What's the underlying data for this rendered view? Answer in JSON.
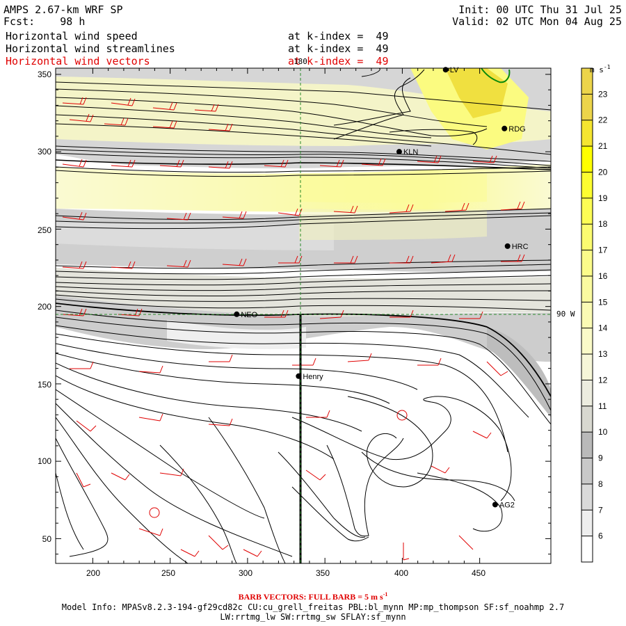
{
  "header": {
    "model": "AMPS 2.67-km WRF SP",
    "forecast_label": "Fcst:",
    "forecast_value": "98 h",
    "init": "Init: 00 UTC Thu 31 Jul 25",
    "valid": "Valid: 02 UTC Mon 04 Aug 25",
    "fields": [
      {
        "name": "Horizontal wind speed",
        "level": "at k-index =  49",
        "color": "#000000"
      },
      {
        "name": "Horizontal wind streamlines",
        "level": "at k-index =  49",
        "color": "#000000"
      },
      {
        "name": "Horizontal wind vectors",
        "level": "at k-index =  49",
        "color": "#e00000"
      }
    ]
  },
  "map": {
    "x_ticks": [
      "200",
      "250",
      "300",
      "350",
      "400",
      "450"
    ],
    "y_ticks": [
      "350",
      "300",
      "250",
      "200",
      "150",
      "100",
      "50"
    ],
    "meridian_label": "180",
    "parallel_label": "90 W",
    "stations": [
      {
        "name": "LV",
        "x": 428,
        "y": 353
      },
      {
        "name": "RDG",
        "x": 466,
        "y": 315
      },
      {
        "name": "KLN",
        "x": 398,
        "y": 300
      },
      {
        "name": "HRC",
        "x": 468,
        "y": 239
      },
      {
        "name": "NEO",
        "x": 293,
        "y": 195
      },
      {
        "name": "Henry",
        "x": 333,
        "y": 155
      },
      {
        "name": "AG2",
        "x": 460,
        "y": 72
      }
    ]
  },
  "colorbar": {
    "unit": "m s",
    "unit_exp": "-1",
    "levels": [
      "6",
      "7",
      "8",
      "9",
      "10",
      "11",
      "12",
      "13",
      "14",
      "15",
      "16",
      "17",
      "18",
      "19",
      "20",
      "21",
      "22",
      "23"
    ],
    "colors": [
      "#ffffff",
      "#eeeeee",
      "#dadada",
      "#c8c8c8",
      "#b9b9b9",
      "#d8d8d0",
      "#ececdf",
      "#f6f6d8",
      "#fafac8",
      "#fafab4",
      "#fafaa0",
      "#fbfb8a",
      "#fbfb70",
      "#fcfc55",
      "#fdfd30",
      "#ffff00",
      "#f5e530",
      "#ecd44a"
    ]
  },
  "footer": {
    "barb_note": "BARB VECTORS:  FULL BARB = 5 m s",
    "barb_exp": "-1",
    "model_info": "Model Info: MPASv8.2.3-194-gf29cd82c CU:cu_grell_freitas PBL:bl_mynn MP:mp_thompson SF:sf_noahmp 2.7",
    "model_info2": "LW:rrtmg_lw SW:rrtmg_sw SFLAY:sf_mynn"
  },
  "colors": {
    "barb": "#e00000",
    "streamline": "#000000",
    "grid": "#2a8a2a",
    "ice_edge": "#0a8a0a"
  }
}
